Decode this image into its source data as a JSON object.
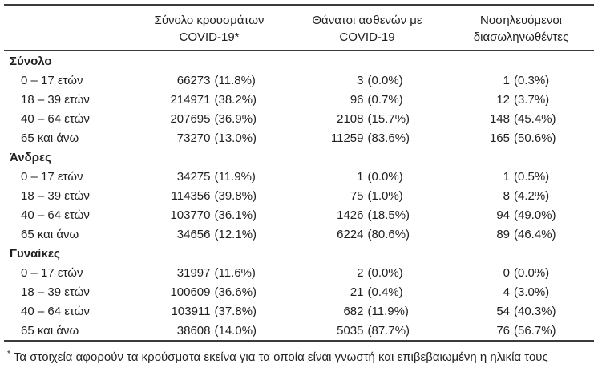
{
  "page": {
    "background_color": "#ffffff",
    "text_color": "#1f1f1f",
    "rule_color": "#3b3b3b"
  },
  "table": {
    "header": [
      {
        "line1": "Σύνολο κρουσμάτων",
        "line2": "COVID-19*"
      },
      {
        "line1": "Θάνατοι ασθενών με",
        "line2": "COVID-19"
      },
      {
        "line1": "Νοσηλευόμενοι",
        "line2": "διασωληνωθέντες"
      }
    ],
    "sections": [
      {
        "header": "Σύνολο",
        "rows": [
          {
            "label": "0 – 17 ετών",
            "cases": "66273",
            "cases_pct": "(11.8%)",
            "deaths": "3",
            "deaths_pct": "(0.0%)",
            "intubated": "1",
            "intubated_pct": "(0.3%)"
          },
          {
            "label": "18 – 39 ετών",
            "cases": "214971",
            "cases_pct": "(38.2%)",
            "deaths": "96",
            "deaths_pct": "(0.7%)",
            "intubated": "12",
            "intubated_pct": "(3.7%)"
          },
          {
            "label": "40 – 64 ετών",
            "cases": "207695",
            "cases_pct": "(36.9%)",
            "deaths": "2108",
            "deaths_pct": "(15.7%)",
            "intubated": "148",
            "intubated_pct": "(45.4%)"
          },
          {
            "label": "65 και άνω",
            "cases": "73270",
            "cases_pct": "(13.0%)",
            "deaths": "11259",
            "deaths_pct": "(83.6%)",
            "intubated": "165",
            "intubated_pct": "(50.6%)"
          }
        ]
      },
      {
        "header": "Άνδρες",
        "rows": [
          {
            "label": "0 – 17 ετών",
            "cases": "34275",
            "cases_pct": "(11.9%)",
            "deaths": "1",
            "deaths_pct": "(0.0%)",
            "intubated": "1",
            "intubated_pct": "(0.5%)"
          },
          {
            "label": "18 – 39 ετών",
            "cases": "114356",
            "cases_pct": "(39.8%)",
            "deaths": "75",
            "deaths_pct": "(1.0%)",
            "intubated": "8",
            "intubated_pct": "(4.2%)"
          },
          {
            "label": "40 – 64 ετών",
            "cases": "103770",
            "cases_pct": "(36.1%)",
            "deaths": "1426",
            "deaths_pct": "(18.5%)",
            "intubated": "94",
            "intubated_pct": "(49.0%)"
          },
          {
            "label": "65 και άνω",
            "cases": "34656",
            "cases_pct": "(12.1%)",
            "deaths": "6224",
            "deaths_pct": "(80.6%)",
            "intubated": "89",
            "intubated_pct": "(46.4%)"
          }
        ]
      },
      {
        "header": "Γυναίκες",
        "rows": [
          {
            "label": "0 – 17 ετών",
            "cases": "31997",
            "cases_pct": "(11.6%)",
            "deaths": "2",
            "deaths_pct": "(0.0%)",
            "intubated": "0",
            "intubated_pct": "(0.0%)"
          },
          {
            "label": "18 – 39 ετών",
            "cases": "100609",
            "cases_pct": "(36.6%)",
            "deaths": "21",
            "deaths_pct": "(0.4%)",
            "intubated": "4",
            "intubated_pct": "(3.0%)"
          },
          {
            "label": "40 – 64 ετών",
            "cases": "103911",
            "cases_pct": "(37.8%)",
            "deaths": "682",
            "deaths_pct": "(11.9%)",
            "intubated": "54",
            "intubated_pct": "(40.3%)"
          },
          {
            "label": "65 και άνω",
            "cases": "38608",
            "cases_pct": "(14.0%)",
            "deaths": "5035",
            "deaths_pct": "(87.7%)",
            "intubated": "76",
            "intubated_pct": "(56.7%)"
          }
        ]
      }
    ],
    "footnote_marker": "*",
    "footnote_text": "Τα στοιχεία αφορούν τα κρούσματα εκείνα για τα οποία είναι γνωστή και επιβεβαιωμένη η ηλικία τους"
  }
}
